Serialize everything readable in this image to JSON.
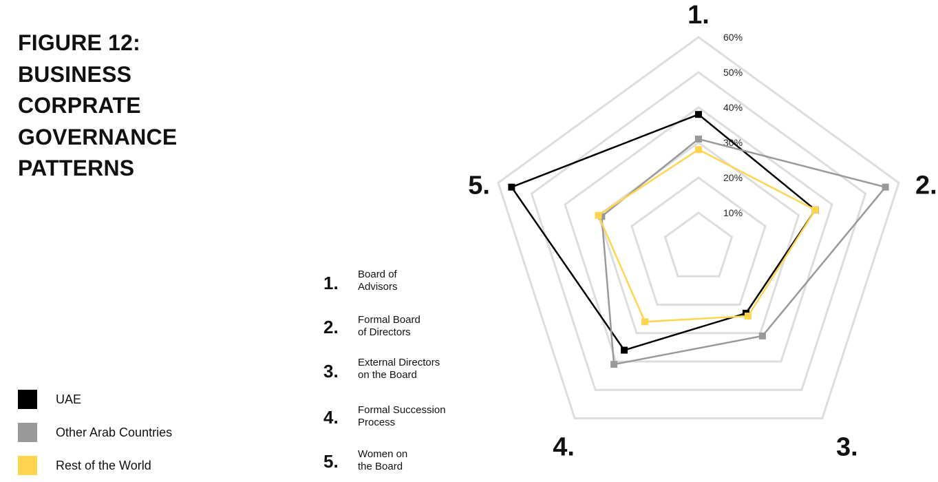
{
  "title_lines": [
    "FIGURE 12:",
    "BUSINESS",
    "CORPRATE",
    "GOVERNANCE",
    "PATTERNS"
  ],
  "legend": [
    {
      "label": "UAE",
      "color": "#000000"
    },
    {
      "label": "Other Arab Countries",
      "color": "#999999"
    },
    {
      "label": "Rest of the World",
      "color": "#FFD54F"
    }
  ],
  "categories": [
    {
      "number": "1.",
      "line1": "Board of",
      "line2": "Advisors"
    },
    {
      "number": "2.",
      "line1": "Formal Board",
      "line2": "of Directors"
    },
    {
      "number": "3.",
      "line1": "External Directors",
      "line2": "on the Board"
    },
    {
      "number": "4.",
      "line1": "Formal Succession",
      "line2": "Process"
    },
    {
      "number": "5.",
      "line1": "Women on",
      "line2": "the Board"
    }
  ],
  "chart_data": {
    "type": "radar",
    "axes": [
      "1.",
      "2.",
      "3.",
      "4.",
      "5."
    ],
    "scale_max": 60,
    "rings": [
      10,
      20,
      30,
      40,
      50,
      60
    ],
    "ring_labels": [
      "10%",
      "20%",
      "30%",
      "40%",
      "50%",
      "60%"
    ],
    "series": [
      {
        "name": "UAE",
        "color": "#000000",
        "values": [
          38,
          35,
          23,
          36,
          56
        ]
      },
      {
        "name": "Other Arab Countries",
        "color": "#999999",
        "values": [
          31,
          56,
          31,
          41,
          29
        ]
      },
      {
        "name": "Rest of the World",
        "color": "#FFD54F",
        "values": [
          28,
          35,
          24,
          26,
          30
        ]
      }
    ],
    "grid_color": "#DDDDDD"
  }
}
